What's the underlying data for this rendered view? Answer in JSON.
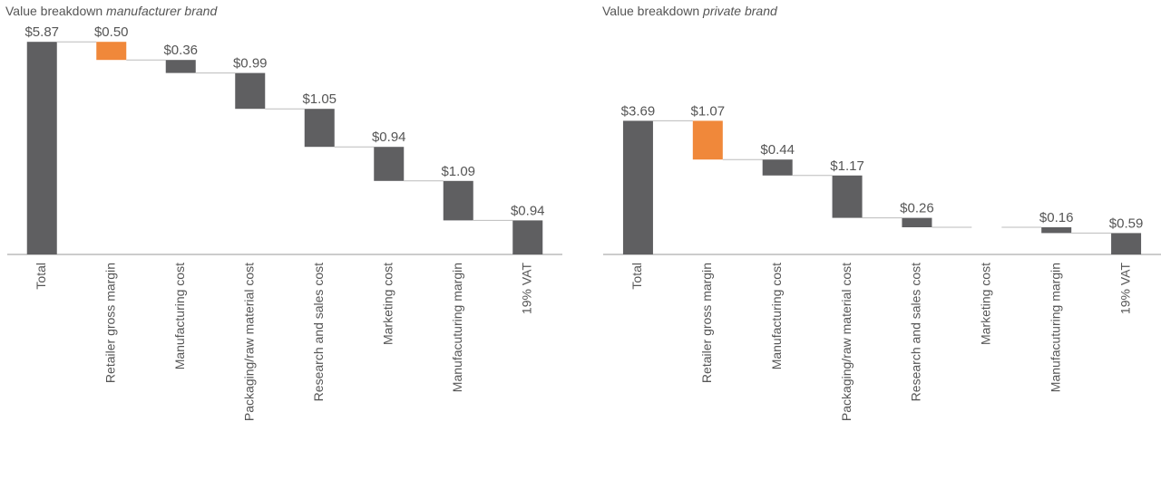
{
  "chart_data": [
    {
      "type": "waterfall",
      "title": "Value breakdown",
      "title_emphasis": "manufacturer brand",
      "categories": [
        "Total",
        "Retailer gross margin",
        "Manufacturing cost",
        "Packaging/raw material cost",
        "Research and sales cost",
        "Marketing cost",
        "Manufacuturing margin",
        "19% VAT"
      ],
      "values": [
        5.87,
        0.5,
        0.36,
        0.99,
        1.05,
        0.94,
        1.09,
        0.94
      ],
      "value_labels": [
        "$5.87",
        "$0.50",
        "$0.36",
        "$0.99",
        "$1.05",
        "$0.94",
        "$1.09",
        "$0.94"
      ],
      "colors": [
        "#5f5f61",
        "#f0883a",
        "#5f5f61",
        "#5f5f61",
        "#5f5f61",
        "#5f5f61",
        "#5f5f61",
        "#5f5f61"
      ],
      "ylim": [
        0,
        6
      ]
    },
    {
      "type": "waterfall",
      "title": "Value breakdown",
      "title_emphasis": "private brand",
      "categories": [
        "Total",
        "Retailer gross margin",
        "Manufacturing cost",
        "Packaging/raw material cost",
        "Research and sales cost",
        "Marketing cost",
        "Manufacuturing margin",
        "19% VAT"
      ],
      "values": [
        3.69,
        1.07,
        0.44,
        1.17,
        0.26,
        null,
        0.16,
        0.59
      ],
      "value_labels": [
        "$3.69",
        "$1.07",
        "$0.44",
        "$1.17",
        "$0.26",
        null,
        "$0.16",
        "$0.59"
      ],
      "colors": [
        "#5f5f61",
        "#f0883a",
        "#5f5f61",
        "#5f5f61",
        "#5f5f61",
        "#5f5f61",
        "#5f5f61",
        "#5f5f61"
      ],
      "ylim": [
        0,
        6
      ]
    }
  ]
}
